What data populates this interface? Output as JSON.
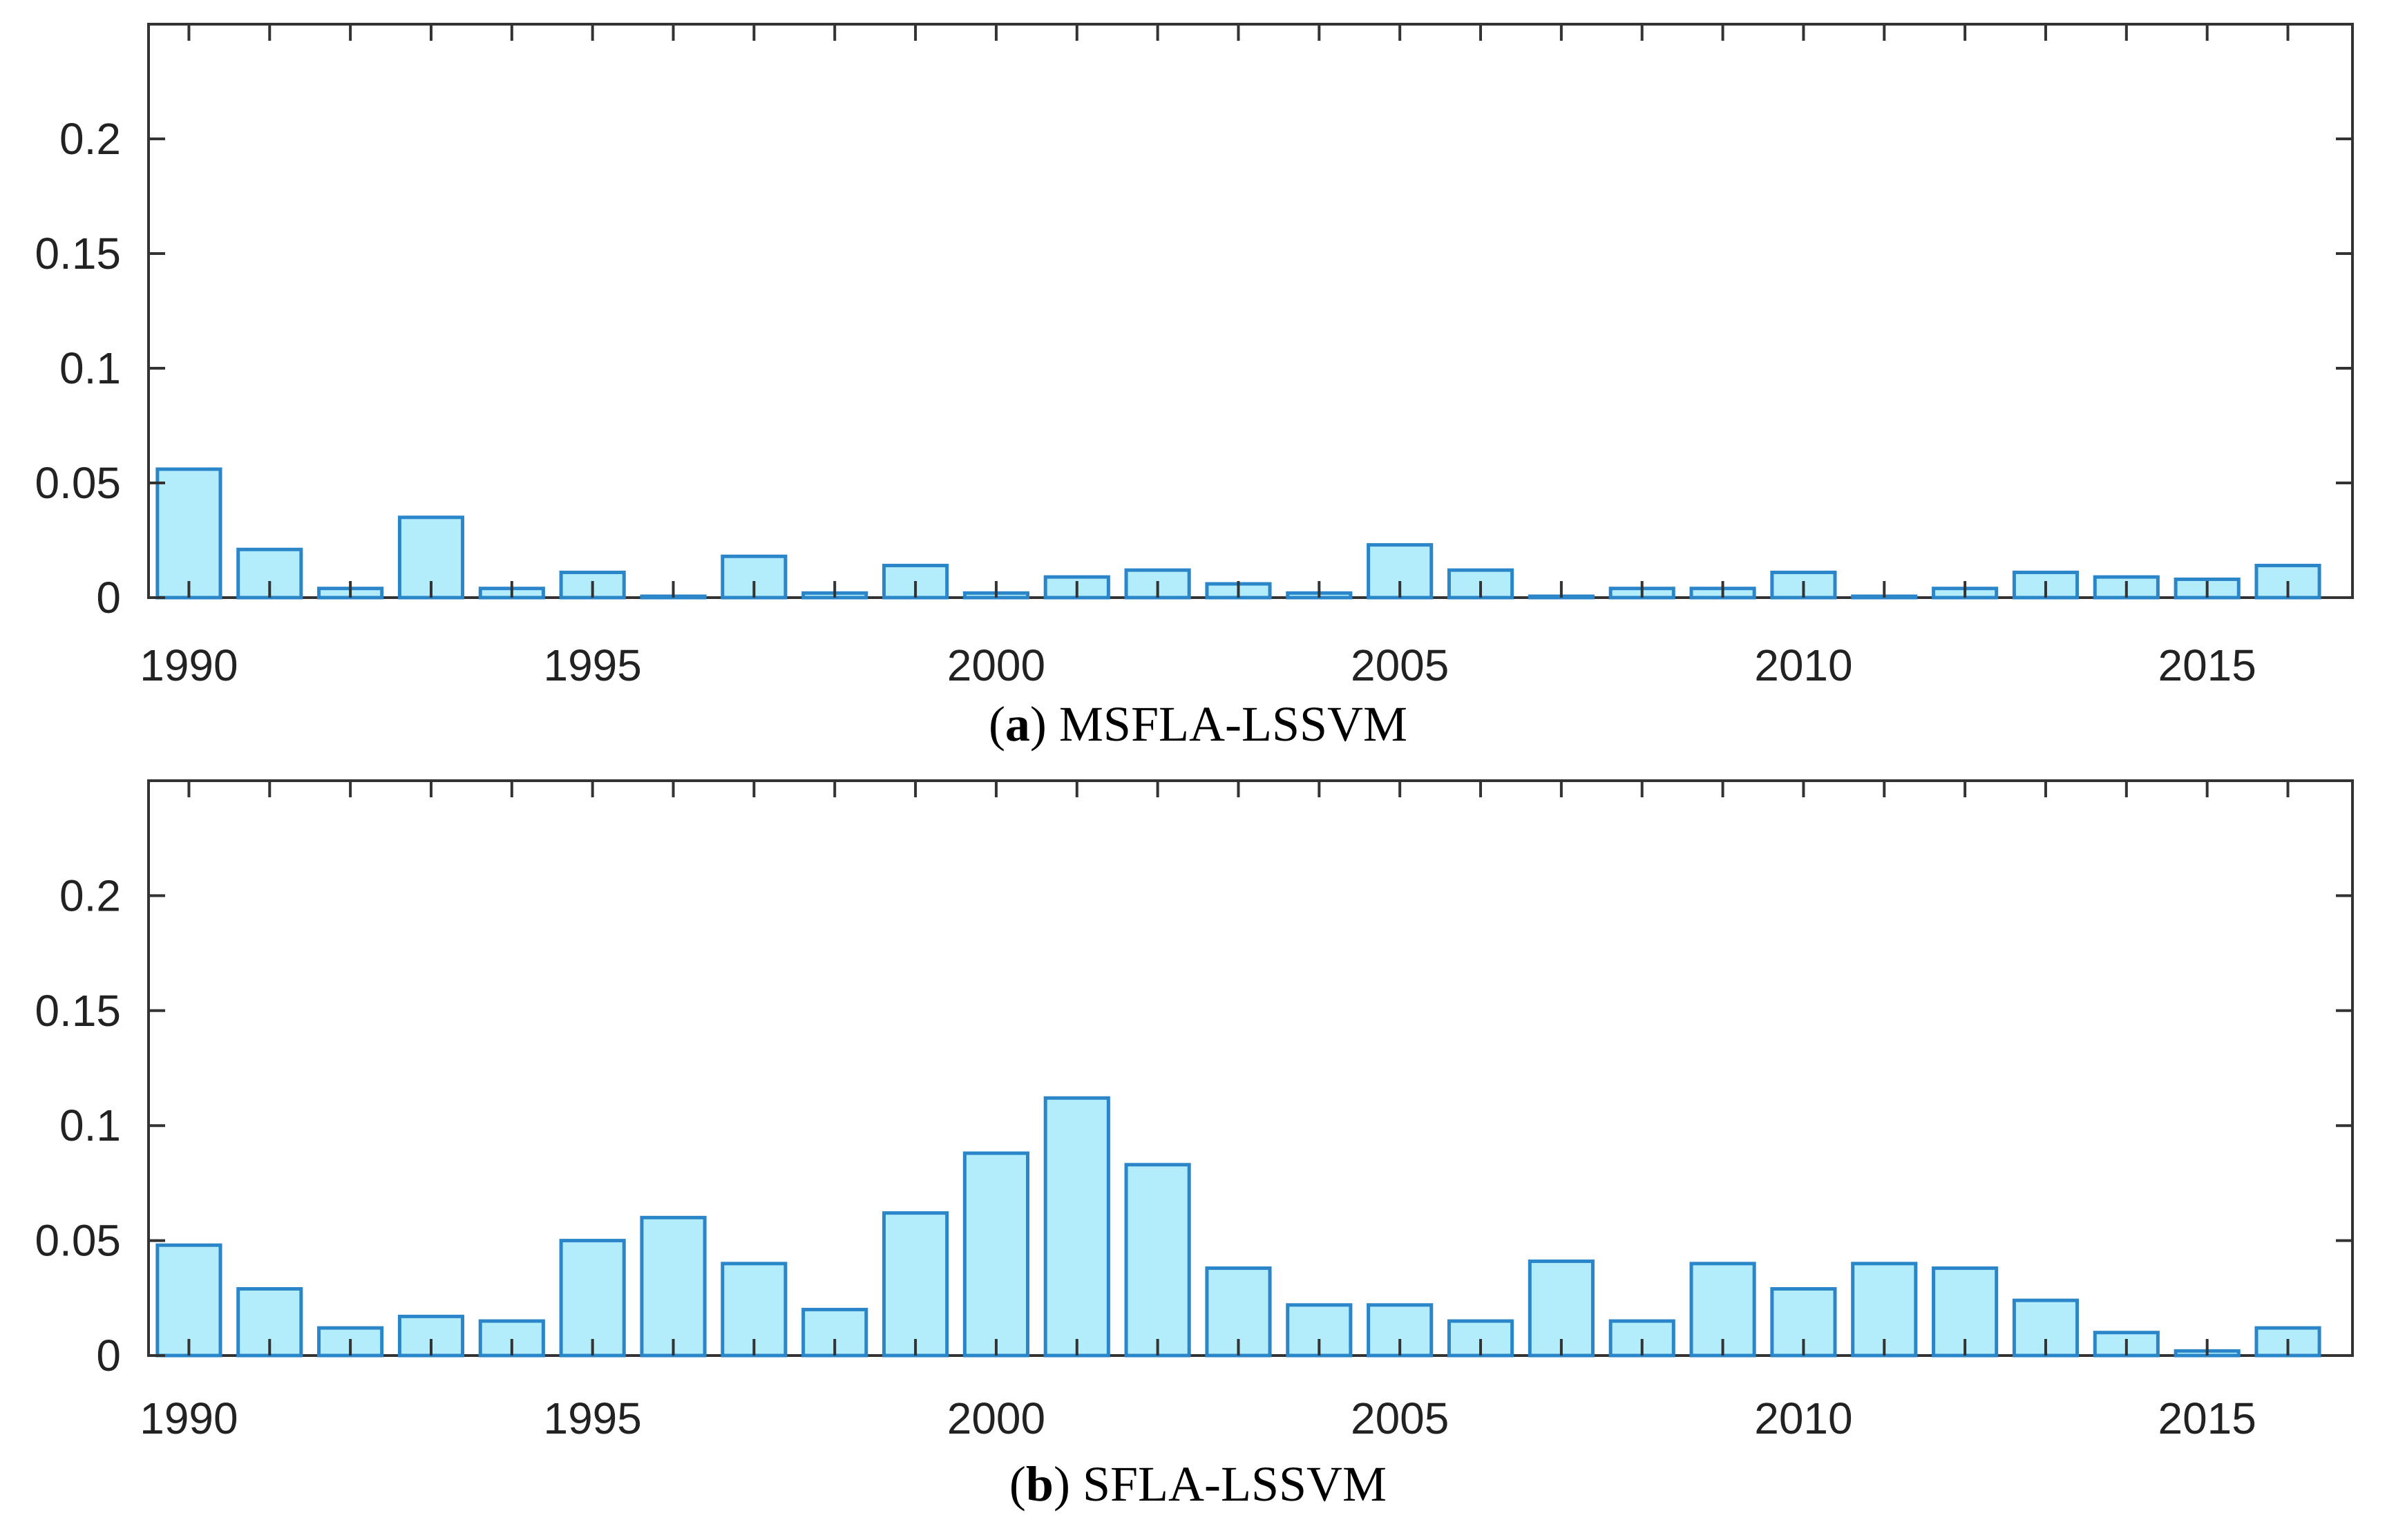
{
  "chart_data": [
    {
      "type": "bar",
      "panel_letter": "a",
      "title": "MSFLA-LSSVM",
      "x": [
        1990,
        1991,
        1992,
        1993,
        1994,
        1995,
        1996,
        1997,
        1998,
        1999,
        2000,
        2001,
        2002,
        2003,
        2004,
        2005,
        2006,
        2007,
        2008,
        2009,
        2010,
        2011,
        2012,
        2013,
        2014,
        2015,
        2016
      ],
      "values": [
        0.056,
        0.021,
        0.004,
        0.035,
        0.004,
        0.011,
        0.0,
        0.018,
        0.002,
        0.014,
        0.002,
        0.009,
        0.012,
        0.006,
        0.002,
        0.023,
        0.012,
        0.0,
        0.004,
        0.004,
        0.011,
        0.0,
        0.004,
        0.011,
        0.009,
        0.008,
        0.014
      ],
      "xticks": [
        1990,
        1995,
        2000,
        2005,
        2010,
        2015
      ],
      "yticks": [
        0,
        0.05,
        0.1,
        0.15,
        0.2
      ],
      "ytick_labels": [
        "0",
        "0.05",
        "0.1",
        "0.15",
        "0.2"
      ],
      "ylim": [
        0,
        0.25
      ],
      "xlim": [
        1989.5,
        2016.8
      ],
      "xlabel": "",
      "ylabel": "",
      "grid": false
    },
    {
      "type": "bar",
      "panel_letter": "b",
      "title": "SFLA-LSSVM",
      "x": [
        1990,
        1991,
        1992,
        1993,
        1994,
        1995,
        1996,
        1997,
        1998,
        1999,
        2000,
        2001,
        2002,
        2003,
        2004,
        2005,
        2006,
        2007,
        2008,
        2009,
        2010,
        2011,
        2012,
        2013,
        2014,
        2015,
        2016
      ],
      "values": [
        0.048,
        0.029,
        0.012,
        0.017,
        0.015,
        0.05,
        0.06,
        0.04,
        0.02,
        0.062,
        0.088,
        0.112,
        0.083,
        0.038,
        0.022,
        0.022,
        0.015,
        0.041,
        0.015,
        0.04,
        0.029,
        0.04,
        0.038,
        0.024,
        0.01,
        0.002,
        0.012
      ],
      "xticks": [
        1990,
        1995,
        2000,
        2005,
        2010,
        2015
      ],
      "yticks": [
        0,
        0.05,
        0.1,
        0.15,
        0.2
      ],
      "ytick_labels": [
        "0",
        "0.05",
        "0.1",
        "0.15",
        "0.2"
      ],
      "ylim": [
        0,
        0.25
      ],
      "xlim": [
        1989.5,
        2016.8
      ],
      "xlabel": "",
      "ylabel": "",
      "grid": false
    }
  ],
  "colors": {
    "bar_fill": "#b3ecfb",
    "bar_stroke": "#2a86c8",
    "axis": "#333333",
    "tick_text": "#222222"
  }
}
